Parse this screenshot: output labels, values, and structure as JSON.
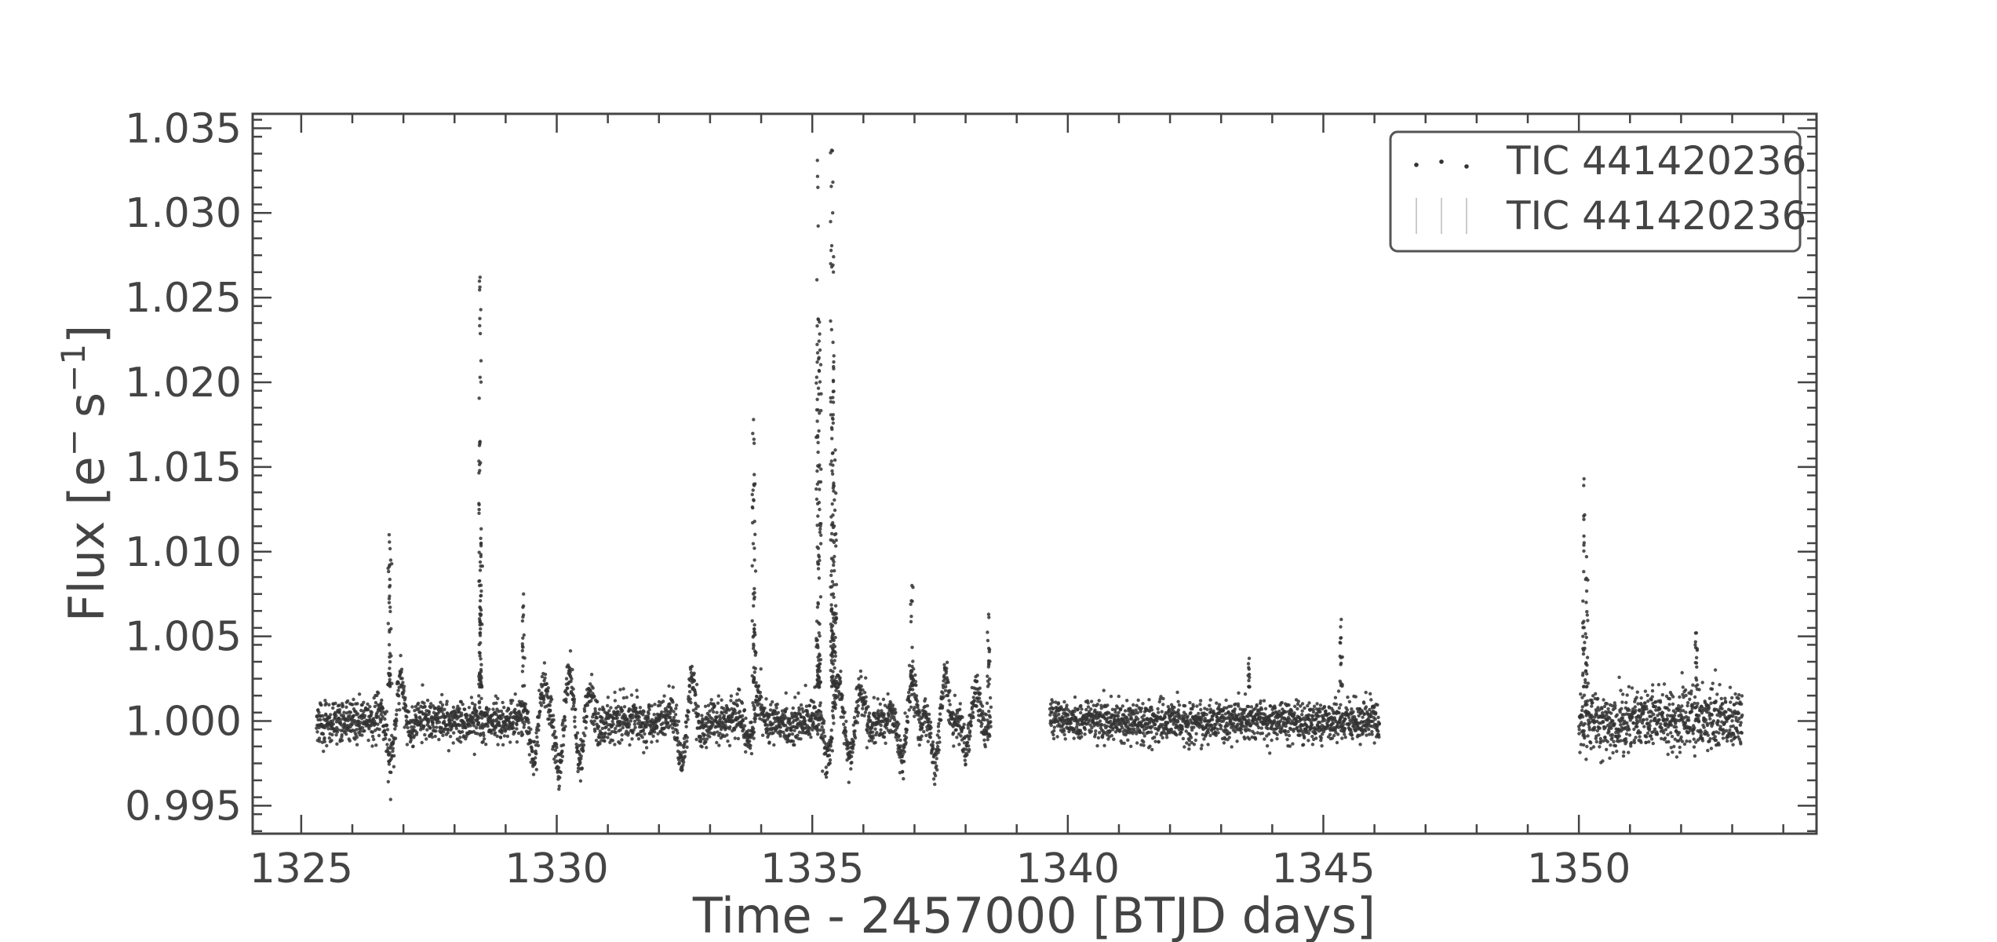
{
  "chart_data": {
    "type": "scatter",
    "xlabel": "Time - 2457000 [BTJD days]",
    "ylabel_main": "Flux [e",
    "ylabel_sup1": "−",
    "ylabel_mid": "s",
    "ylabel_sup2": "−1",
    "ylabel_end": "]",
    "xlim": [
      1324.05,
      1354.65
    ],
    "ylim": [
      0.99335,
      1.03585
    ],
    "x_ticks": [
      1325,
      1330,
      1335,
      1340,
      1345,
      1350
    ],
    "x_tick_labels": [
      "1325",
      "1330",
      "1335",
      "1340",
      "1345",
      "1350"
    ],
    "y_ticks": [
      0.995,
      1.0,
      1.005,
      1.01,
      1.015,
      1.02,
      1.025,
      1.03,
      1.035
    ],
    "y_tick_labels": [
      "0.995",
      "1.000",
      "1.005",
      "1.010",
      "1.015",
      "1.020",
      "1.025",
      "1.030",
      "1.035"
    ],
    "grid": false,
    "legend_position": "top-right",
    "marker_color": "#333333",
    "legend": [
      {
        "label": "TIC 441420236",
        "style": "points"
      },
      {
        "label": "TIC 441420236",
        "style": "errorbars"
      }
    ],
    "segments": [
      {
        "x_start": 1325.3,
        "x_end": 1338.5,
        "cadence_days": 0.00139,
        "median": 1.0
      },
      {
        "x_start": 1339.65,
        "x_end": 1346.1,
        "cadence_days": 0.00139,
        "median": 1.0
      },
      {
        "x_start": 1350.0,
        "x_end": 1353.2,
        "cadence_days": 0.00139,
        "median": 1.0
      }
    ],
    "wiggles": [
      {
        "x": 1326.85,
        "amplitude": 0.003
      },
      {
        "x": 1329.65,
        "amplitude": 0.0025
      },
      {
        "x": 1330.15,
        "amplitude": 0.003
      },
      {
        "x": 1330.55,
        "amplitude": 0.002
      },
      {
        "x": 1332.55,
        "amplitude": 0.003
      },
      {
        "x": 1333.85,
        "amplitude": 0.0015
      },
      {
        "x": 1335.4,
        "amplitude": 0.0025
      },
      {
        "x": 1335.85,
        "amplitude": 0.002
      },
      {
        "x": 1336.85,
        "amplitude": 0.0025
      },
      {
        "x": 1337.5,
        "amplitude": 0.003
      },
      {
        "x": 1338.1,
        "amplitude": 0.002
      }
    ],
    "flares": [
      {
        "x": 1326.72,
        "peak": 1.011
      },
      {
        "x": 1326.75,
        "peak": 1.0095
      },
      {
        "x": 1328.5,
        "peak": 1.0262
      },
      {
        "x": 1328.5,
        "peak": 1.0165
      },
      {
        "x": 1328.52,
        "peak": 1.0105
      },
      {
        "x": 1329.35,
        "peak": 1.0075
      },
      {
        "x": 1333.85,
        "peak": 1.0178
      },
      {
        "x": 1333.88,
        "peak": 1.014
      },
      {
        "x": 1335.1,
        "peak": 1.0331
      },
      {
        "x": 1335.12,
        "peak": 1.0237
      },
      {
        "x": 1335.15,
        "peak": 1.0219
      },
      {
        "x": 1335.38,
        "peak": 1.0337
      },
      {
        "x": 1335.4,
        "peak": 1.03
      },
      {
        "x": 1335.42,
        "peak": 1.0212
      },
      {
        "x": 1335.45,
        "peak": 1.016
      },
      {
        "x": 1336.95,
        "peak": 1.008
      },
      {
        "x": 1338.45,
        "peak": 1.0063
      },
      {
        "x": 1343.55,
        "peak": 1.0037
      },
      {
        "x": 1345.35,
        "peak": 1.006
      },
      {
        "x": 1350.1,
        "peak": 1.0143
      },
      {
        "x": 1350.15,
        "peak": 1.0097
      },
      {
        "x": 1352.3,
        "peak": 1.0052
      }
    ]
  }
}
